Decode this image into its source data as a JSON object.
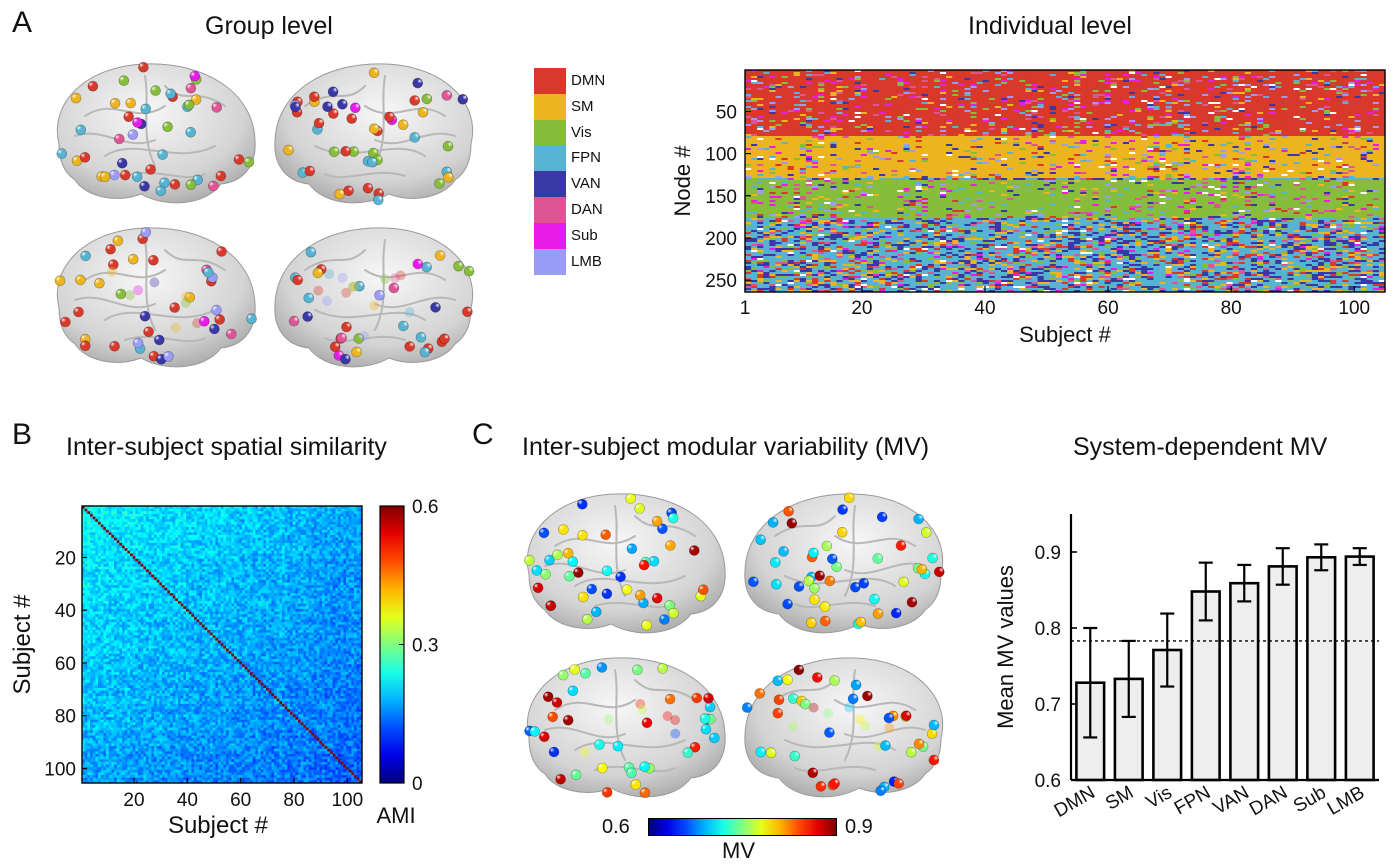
{
  "figure": {
    "panel_letters": [
      "A",
      "B",
      "C"
    ],
    "titles": {
      "group_level": "Group level",
      "individual_level": "Individual level",
      "spatial_similarity": "Inter-subject spatial similarity",
      "modular_variability": "Inter-subject modular variability (MV)",
      "system_mv": "System-dependent MV"
    }
  },
  "legend": {
    "items": [
      {
        "label": "DMN",
        "color": "#d8392b"
      },
      {
        "label": "SM",
        "color": "#ecb51f"
      },
      {
        "label": "Vis",
        "color": "#86bd3a"
      },
      {
        "label": "FPN",
        "color": "#56b3d2"
      },
      {
        "label": "VAN",
        "color": "#3a37a6"
      },
      {
        "label": "DAN",
        "color": "#dd5594"
      },
      {
        "label": "Sub",
        "color": "#e81ce8"
      },
      {
        "label": "LMB",
        "color": "#9a9cf7"
      }
    ]
  },
  "mv_colorbar": {
    "min_label": "0.6",
    "max_label": "0.9",
    "label": "MV"
  },
  "chart_data": [
    {
      "type": "heatmap",
      "name": "Individual level",
      "title": "Individual level",
      "xlabel": "Subject #",
      "ylabel": "Node #",
      "x_ticks": [
        "1",
        "20",
        "40",
        "60",
        "80",
        "100"
      ],
      "x_tick_values": [
        1,
        20,
        40,
        60,
        80,
        100
      ],
      "y_ticks": [
        "50",
        "100",
        "150",
        "200",
        "250"
      ],
      "y_tick_values": [
        50,
        100,
        150,
        200,
        250
      ],
      "xlim": [
        1,
        105
      ],
      "ylim": [
        1,
        264
      ],
      "node_blocks": [
        {
          "system": "DMN",
          "from": 1,
          "to": 77
        },
        {
          "system": "SM",
          "from": 78,
          "to": 128
        },
        {
          "system": "Vis",
          "from": 129,
          "to": 174
        },
        {
          "system": "FPN",
          "from": 175,
          "to": 264
        }
      ]
    },
    {
      "type": "heatmap",
      "name": "Inter-subject spatial similarity",
      "title": "Inter-subject spatial similarity",
      "xlabel": "Subject #",
      "ylabel": "Subject #",
      "x_ticks": [
        "20",
        "40",
        "60",
        "80",
        "100"
      ],
      "x_tick_values": [
        20,
        40,
        60,
        80,
        100
      ],
      "y_ticks": [
        "20",
        "40",
        "60",
        "80",
        "100"
      ],
      "y_tick_values": [
        20,
        40,
        60,
        80,
        100
      ],
      "xlim": [
        1,
        105
      ],
      "ylim": [
        1,
        105
      ],
      "colorbar": {
        "label": "AMI",
        "min": 0,
        "max": 0.6,
        "ticks": [
          "0",
          "0.3",
          "0.6"
        ],
        "tick_values": [
          0,
          0.3,
          0.6
        ]
      }
    },
    {
      "type": "bar",
      "title": "System-dependent MV",
      "categories": [
        "DMN",
        "SM",
        "Vis",
        "FPN",
        "VAN",
        "DAN",
        "Sub",
        "LMB"
      ],
      "values": [
        0.728,
        0.733,
        0.771,
        0.848,
        0.859,
        0.881,
        0.893,
        0.894
      ],
      "errors": [
        0.072,
        0.05,
        0.048,
        0.038,
        0.024,
        0.024,
        0.017,
        0.011
      ],
      "ylabel": "Mean MV values",
      "ylim": [
        0.6,
        0.95
      ],
      "yticks": [
        "0.6",
        "0.7",
        "0.8",
        "0.9"
      ],
      "ytick_values": [
        0.6,
        0.7,
        0.8,
        0.9
      ],
      "reference_line": 0.783,
      "bar_color": "#eeeeee"
    }
  ]
}
